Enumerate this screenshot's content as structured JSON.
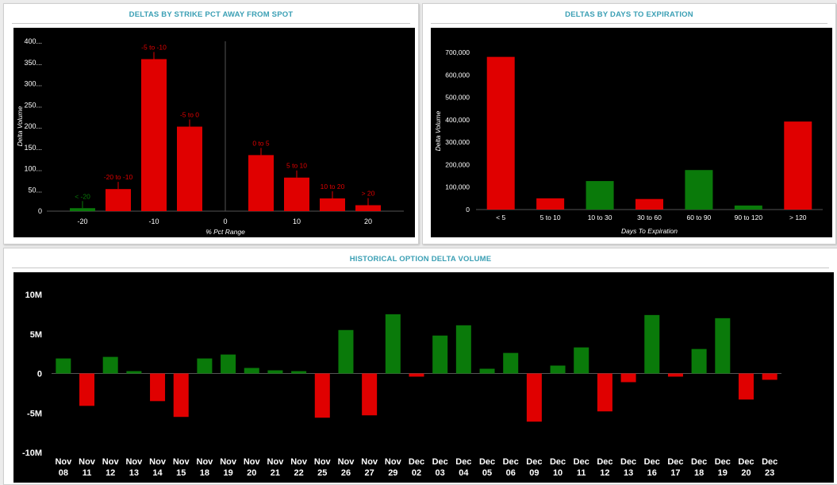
{
  "colors": {
    "positive": "#0a7a0a",
    "negative": "#e00000",
    "title": "#3a9fb4",
    "text": "#ffffff"
  },
  "panels": {
    "strike": {
      "title": "DELTAS BY STRIKE PCT AWAY FROM SPOT"
    },
    "dte": {
      "title": "DELTAS BY DAYS TO EXPIRATION"
    },
    "hist": {
      "title": "HISTORICAL OPTION DELTA VOLUME"
    }
  },
  "chart_data": [
    {
      "id": "strike",
      "type": "bar",
      "title": "DELTAS BY STRIKE PCT AWAY FROM SPOT",
      "xlabel": "% Pct Range",
      "ylabel": "Delta Volume",
      "xlim": [
        -25,
        25
      ],
      "xticks": [
        -20,
        -10,
        0,
        10,
        20
      ],
      "ylim": [
        0,
        400
      ],
      "yticks": [
        {
          "v": 0,
          "label": "0"
        },
        {
          "v": 50,
          "label": "50..."
        },
        {
          "v": 100,
          "label": "100..."
        },
        {
          "v": 150,
          "label": "150..."
        },
        {
          "v": 200,
          "label": "200..."
        },
        {
          "v": 250,
          "label": "250..."
        },
        {
          "v": 300,
          "label": "300..."
        },
        {
          "v": 350,
          "label": "350..."
        },
        {
          "v": 400,
          "label": "400..."
        }
      ],
      "center_line_x": 0,
      "grid": false,
      "bars": [
        {
          "x": -20,
          "label": "< -20",
          "value": 7,
          "color": "green"
        },
        {
          "x": -15,
          "label": "-20 to -10",
          "value": 52,
          "color": "red"
        },
        {
          "x": -10,
          "label": "-5 to -10",
          "value": 358,
          "color": "red"
        },
        {
          "x": -5,
          "label": "-5 to 0",
          "value": 199,
          "color": "red"
        },
        {
          "x": 5,
          "label": "0 to 5",
          "value": 132,
          "color": "red"
        },
        {
          "x": 10,
          "label": "5 to 10",
          "value": 79,
          "color": "red"
        },
        {
          "x": 15,
          "label": "10 to 20",
          "value": 30,
          "color": "red"
        },
        {
          "x": 20,
          "label": "> 20",
          "value": 14,
          "color": "red"
        }
      ]
    },
    {
      "id": "dte",
      "type": "bar",
      "title": "DELTAS BY DAYS TO EXPIRATION",
      "xlabel": "Days To Expiration",
      "ylabel": "Delta Volume",
      "ylim": [
        0,
        700000
      ],
      "yticks": [
        {
          "v": 0,
          "label": "0"
        },
        {
          "v": 100000,
          "label": "100,000"
        },
        {
          "v": 200000,
          "label": "200,000"
        },
        {
          "v": 300000,
          "label": "300,000"
        },
        {
          "v": 400000,
          "label": "400,000"
        },
        {
          "v": 500000,
          "label": "500,000"
        },
        {
          "v": 600000,
          "label": "600,000"
        },
        {
          "v": 700000,
          "label": "700,000"
        }
      ],
      "grid": false,
      "categories": [
        "< 5",
        "5 to 10",
        "10 to 30",
        "30 to 60",
        "60 to 90",
        "90 to 120",
        "> 120"
      ],
      "values": [
        680000,
        50000,
        127000,
        47000,
        176000,
        18000,
        392000
      ],
      "colors": [
        "red",
        "red",
        "green",
        "red",
        "green",
        "green",
        "red"
      ]
    },
    {
      "id": "hist",
      "type": "bar",
      "title": "HISTORICAL OPTION DELTA VOLUME",
      "unit": "M",
      "ylim": [
        -10,
        10
      ],
      "yticks": [
        {
          "v": 10,
          "label": "10M"
        },
        {
          "v": 5,
          "label": "5M"
        },
        {
          "v": 0,
          "label": "0"
        },
        {
          "v": -5,
          "label": "-5M"
        },
        {
          "v": -10,
          "label": "-10M"
        }
      ],
      "grid": false,
      "categories": [
        [
          "Nov",
          "08"
        ],
        [
          "Nov",
          "11"
        ],
        [
          "Nov",
          "12"
        ],
        [
          "Nov",
          "13"
        ],
        [
          "Nov",
          "14"
        ],
        [
          "Nov",
          "15"
        ],
        [
          "Nov",
          "18"
        ],
        [
          "Nov",
          "19"
        ],
        [
          "Nov",
          "20"
        ],
        [
          "Nov",
          "21"
        ],
        [
          "Nov",
          "22"
        ],
        [
          "Nov",
          "25"
        ],
        [
          "Nov",
          "26"
        ],
        [
          "Nov",
          "27"
        ],
        [
          "Nov",
          "29"
        ],
        [
          "Dec",
          "02"
        ],
        [
          "Dec",
          "03"
        ],
        [
          "Dec",
          "04"
        ],
        [
          "Dec",
          "05"
        ],
        [
          "Dec",
          "06"
        ],
        [
          "Dec",
          "09"
        ],
        [
          "Dec",
          "10"
        ],
        [
          "Dec",
          "11"
        ],
        [
          "Dec",
          "12"
        ],
        [
          "Dec",
          "13"
        ],
        [
          "Dec",
          "16"
        ],
        [
          "Dec",
          "17"
        ],
        [
          "Dec",
          "18"
        ],
        [
          "Dec",
          "19"
        ],
        [
          "Dec",
          "20"
        ],
        [
          "Dec",
          "23"
        ]
      ],
      "values": [
        1.9,
        -4.1,
        2.1,
        0.3,
        -3.5,
        -5.5,
        1.9,
        2.4,
        0.7,
        0.4,
        0.3,
        -5.6,
        5.5,
        -5.3,
        7.5,
        -0.4,
        4.8,
        6.1,
        0.6,
        2.6,
        -6.1,
        1.0,
        3.3,
        -4.8,
        -1.1,
        7.4,
        -0.4,
        3.1,
        7.0,
        -3.3,
        -0.8
      ]
    }
  ]
}
